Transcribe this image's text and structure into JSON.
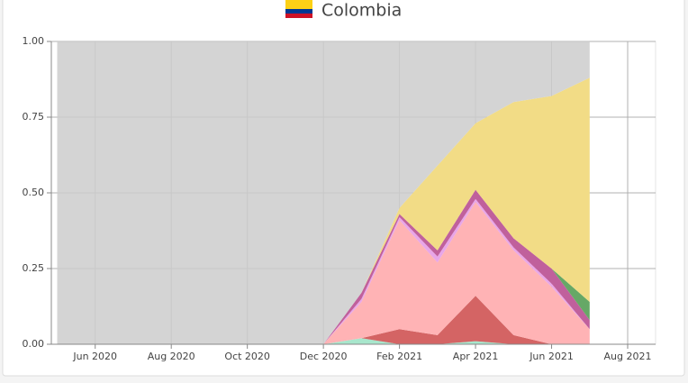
{
  "chart_data": {
    "type": "stacked-area",
    "title": "Colombia",
    "x": [
      "2020-05",
      "2020-06",
      "2020-07",
      "2020-08",
      "2020-09",
      "2020-10",
      "2020-11",
      "2020-12",
      "2021-01",
      "2021-02",
      "2021-03",
      "2021-04",
      "2021-05",
      "2021-06",
      "2021-07"
    ],
    "xlim": [
      "2020-05",
      "2021-08"
    ],
    "xticks": [
      {
        "value": "2020-06",
        "label": "Jun 2020"
      },
      {
        "value": "2020-08",
        "label": "Aug 2020"
      },
      {
        "value": "2020-10",
        "label": "Oct 2020"
      },
      {
        "value": "2020-12",
        "label": "Dec 2020"
      },
      {
        "value": "2021-02",
        "label": "Feb 2021"
      },
      {
        "value": "2021-04",
        "label": "Apr 2021"
      },
      {
        "value": "2021-06",
        "label": "Jun 2021"
      },
      {
        "value": "2021-08",
        "label": "Aug 2021"
      }
    ],
    "ylim": [
      0,
      1
    ],
    "yticks": [
      {
        "value": 0,
        "label": "0.00"
      },
      {
        "value": 0.25,
        "label": "0.25"
      },
      {
        "value": 0.5,
        "label": "0.50"
      },
      {
        "value": 0.75,
        "label": "0.75"
      },
      {
        "value": 1,
        "label": "1.00"
      }
    ],
    "grid": true,
    "series": [
      {
        "color": "#a8e6cc",
        "values": [
          0,
          0,
          0,
          0,
          0,
          0,
          0,
          0,
          0.02,
          0,
          0,
          0.01,
          0,
          0,
          0
        ]
      },
      {
        "color": "#d46464",
        "values": [
          0,
          0,
          0,
          0,
          0,
          0,
          0,
          0,
          0,
          0.05,
          0.03,
          0.15,
          0.03,
          0,
          0
        ]
      },
      {
        "color": "#ffb3b5",
        "values": [
          0,
          0,
          0,
          0,
          0,
          0,
          0,
          0,
          0.12,
          0.36,
          0.24,
          0.31,
          0.28,
          0.19,
          0.05
        ]
      },
      {
        "color": "#e8a6e8",
        "values": [
          0,
          0,
          0,
          0,
          0,
          0,
          0,
          0,
          0.01,
          0.01,
          0.02,
          0.01,
          0.01,
          0.01,
          0
        ]
      },
      {
        "color": "#c0609c",
        "values": [
          0,
          0,
          0,
          0,
          0,
          0,
          0,
          0,
          0.02,
          0.01,
          0.02,
          0.03,
          0.03,
          0.05,
          0.03
        ]
      },
      {
        "color": "#66a866",
        "values": [
          0,
          0,
          0,
          0,
          0,
          0,
          0,
          0,
          0,
          0,
          0,
          0,
          0,
          0,
          0.06
        ]
      },
      {
        "color": "#f2dc86",
        "values": [
          0,
          0,
          0,
          0,
          0,
          0,
          0,
          0,
          0,
          0.02,
          0.28,
          0.22,
          0.45,
          0.57,
          0.74
        ]
      },
      {
        "color": "#cccccc",
        "values": [
          1,
          1,
          1,
          1,
          1,
          1,
          1,
          1,
          0.83,
          0.55,
          0.41,
          0.27,
          0.2,
          0.18,
          0.12
        ]
      }
    ]
  }
}
